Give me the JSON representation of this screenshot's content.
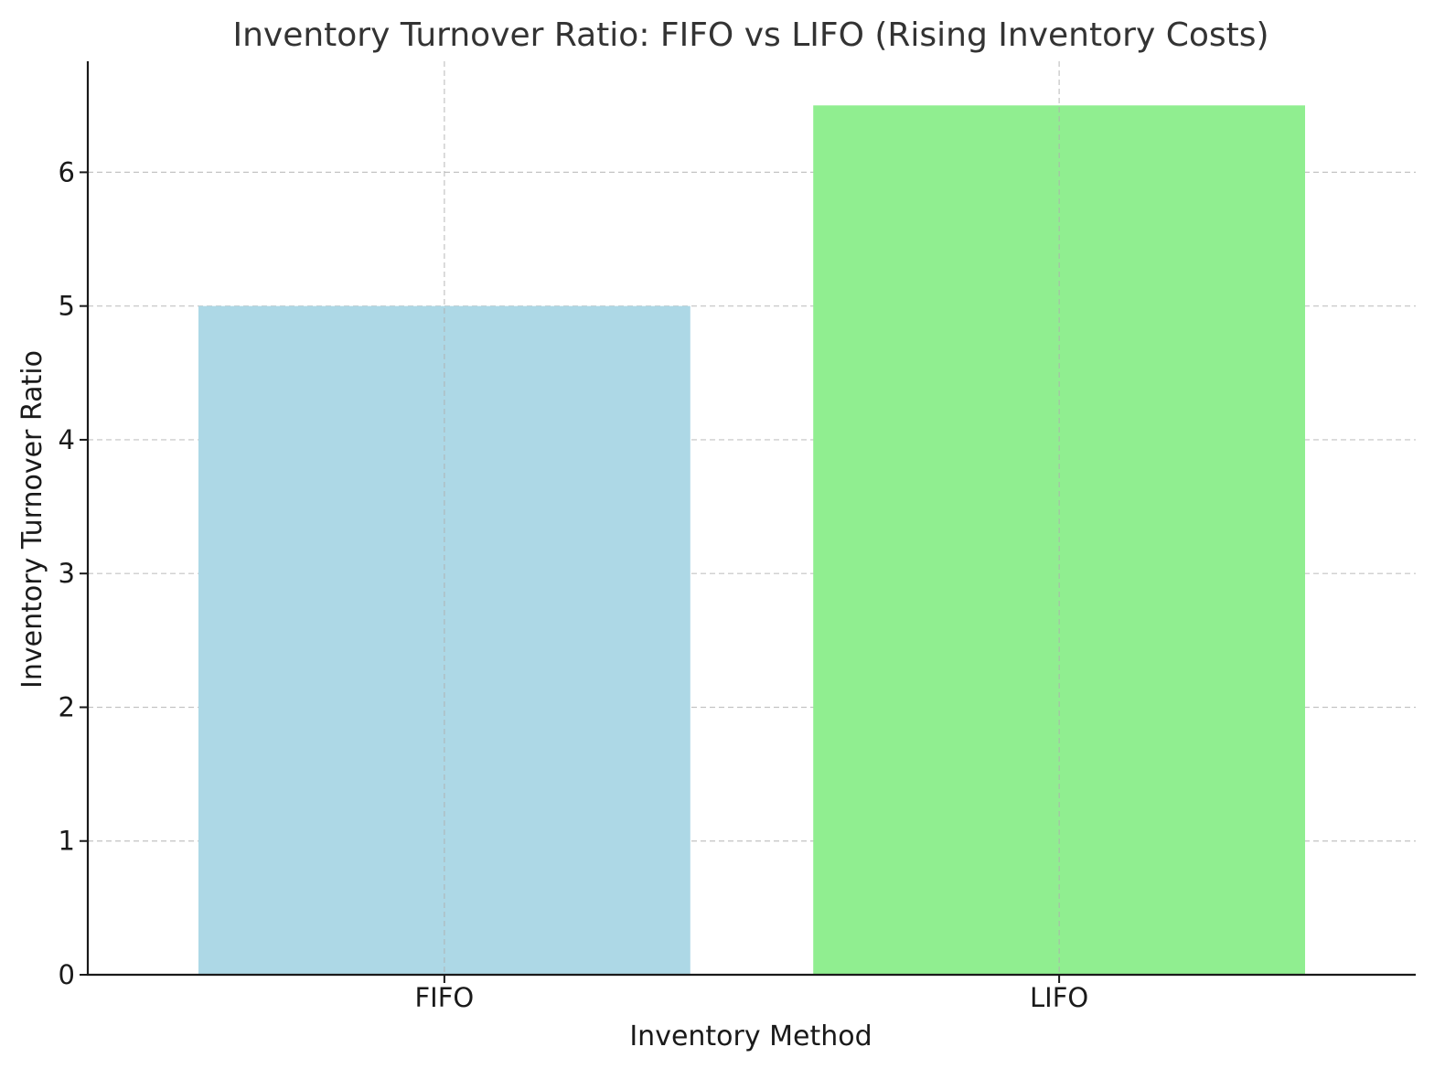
{
  "chart_data": {
    "type": "bar",
    "title": "Inventory Turnover Ratio: FIFO vs LIFO (Rising Inventory Costs)",
    "xlabel": "Inventory Method",
    "ylabel": "Inventory Turnover Ratio",
    "categories": [
      "FIFO",
      "LIFO"
    ],
    "values": [
      5,
      6.5
    ],
    "colors": [
      "#add8e6",
      "#90ee90"
    ],
    "ylim": [
      0,
      6.83
    ],
    "yticks": [
      0,
      1,
      2,
      3,
      4,
      5,
      6
    ],
    "grid": true,
    "legend": "none"
  }
}
